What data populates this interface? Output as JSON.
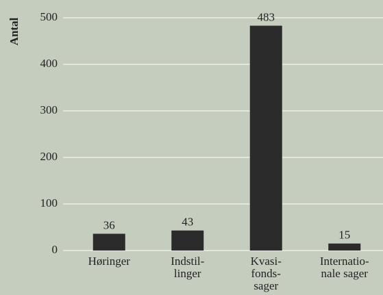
{
  "chart_data": {
    "type": "bar",
    "y_label": "Antal",
    "categories": [
      "Høringer",
      "Indstil-\nlinger",
      "Kvasi-\nfonds-\nsager",
      "Internatio-\nnale sager"
    ],
    "values": [
      36,
      43,
      483,
      15
    ],
    "color": "#2b2b2b",
    "ylim": [
      0,
      500
    ],
    "yticks": [
      0,
      100,
      200,
      300,
      400,
      500
    ],
    "grid": true
  }
}
